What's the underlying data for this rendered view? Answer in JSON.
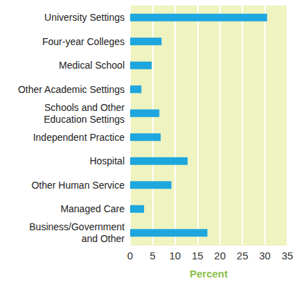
{
  "chart_data": {
    "type": "bar",
    "orientation": "horizontal",
    "categories": [
      "University Settings",
      "Four-year Colleges",
      "Medical School",
      "Other Academic Settings",
      "Schools and Other\nEducation Settings",
      "Independent Practice",
      "Hospital",
      "Other Human Service",
      "Managed Care",
      "Business/Government\nand Other"
    ],
    "values": [
      30.5,
      7,
      4.8,
      2.5,
      6.5,
      6.8,
      12.8,
      9.2,
      3.1,
      17.2
    ],
    "color": "#1ea6df",
    "xlabel": "Percent",
    "xlim": [
      0,
      35
    ],
    "xticks": [
      0,
      5,
      10,
      15,
      20,
      25,
      30,
      35
    ],
    "grid": true
  }
}
